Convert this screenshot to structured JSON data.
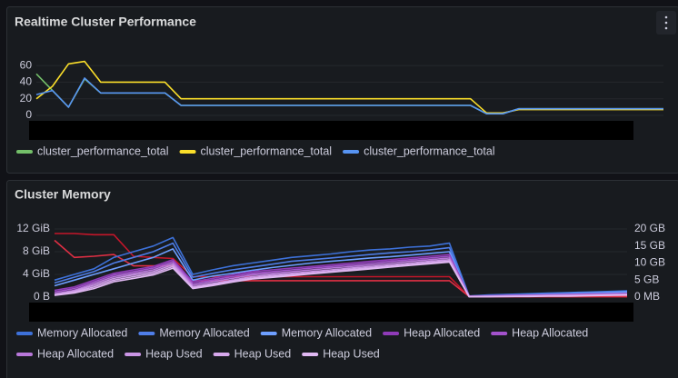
{
  "chart_data": [
    {
      "type": "line",
      "title": "Realtime Cluster Performance",
      "grid": true,
      "categories": [
        null,
        null,
        null,
        null,
        null,
        null,
        null,
        null,
        null,
        null,
        null,
        null,
        null,
        null,
        null,
        null,
        null,
        null,
        null,
        null,
        null,
        null,
        null,
        null,
        null,
        null,
        null,
        null,
        null,
        null,
        null,
        null,
        null,
        null,
        null,
        null,
        null,
        null,
        null,
        null
      ],
      "ylim": [
        0,
        70
      ],
      "yticks": [
        0,
        20,
        40,
        60
      ],
      "series": [
        {
          "name": "cluster_performance_total",
          "color": "#73bf69",
          "values": [
            50,
            30,
            10,
            44,
            27,
            27,
            27,
            27,
            27,
            12,
            12,
            12,
            12,
            12,
            12,
            12,
            12,
            12,
            12,
            12,
            12,
            12,
            12,
            12,
            12,
            12,
            12,
            12,
            2,
            2,
            8,
            8,
            8,
            8,
            8,
            8,
            8,
            8,
            8,
            8
          ]
        },
        {
          "name": "cluster_performance_total",
          "color": "#fade2a",
          "values": [
            20,
            35,
            62,
            65,
            40,
            40,
            40,
            40,
            40,
            20,
            20,
            20,
            20,
            20,
            20,
            20,
            20,
            20,
            20,
            20,
            20,
            20,
            20,
            20,
            20,
            20,
            20,
            20,
            3,
            3,
            7,
            7,
            7,
            7,
            7,
            7,
            7,
            7,
            7,
            7
          ]
        },
        {
          "name": "cluster_performance_total",
          "color": "#5794f2",
          "values": [
            25,
            30,
            10,
            45,
            27,
            27,
            27,
            27,
            27,
            12,
            12,
            12,
            12,
            12,
            12,
            12,
            12,
            12,
            12,
            12,
            12,
            12,
            12,
            12,
            12,
            12,
            12,
            12,
            2,
            2,
            8,
            8,
            8,
            8,
            8,
            8,
            8,
            8,
            8,
            8
          ]
        }
      ]
    },
    {
      "type": "line",
      "title": "Cluster Memory",
      "grid": true,
      "categories": [
        null,
        null,
        null,
        null,
        null,
        null,
        null,
        null,
        null,
        null,
        null,
        null,
        null,
        null,
        null,
        null,
        null,
        null,
        null,
        null,
        null,
        null,
        null,
        null,
        null,
        null,
        null,
        null,
        null,
        null
      ],
      "ylim": [
        0,
        12
      ],
      "yticks": [
        {
          "value": 0,
          "label": "0 B"
        },
        {
          "value": 4,
          "label": "4 GiB"
        },
        {
          "value": 8,
          "label": "8 GiB"
        },
        {
          "value": 12,
          "label": "12 GiB"
        }
      ],
      "y2lim": [
        0,
        20
      ],
      "y2ticks": [
        {
          "value": 0,
          "label": "0 MB"
        },
        {
          "value": 5,
          "label": "5 GB"
        },
        {
          "value": 10,
          "label": "10 GB"
        },
        {
          "value": 15,
          "label": "15 GB"
        },
        {
          "value": 20,
          "label": "20 GB"
        }
      ],
      "series": [
        {
          "color": "#c4162a",
          "values": [
            11.2,
            11.2,
            11,
            11,
            7.2,
            7,
            6.8,
            3.6,
            3.6,
            3.6,
            3.6,
            3.6,
            3.6,
            3.6,
            3.6,
            3.6,
            3.6,
            3.6,
            3.6,
            3.6,
            3.6,
            0.1,
            0.1,
            0.1,
            0.1,
            0.1,
            0.1,
            0.1,
            0.1,
            0.1
          ]
        },
        {
          "color": "#e02f44",
          "values": [
            10,
            7,
            7.2,
            7.5,
            5.5,
            5.5,
            5.5,
            2.9,
            2.9,
            2.9,
            2.9,
            2.9,
            2.9,
            2.9,
            2.9,
            2.9,
            2.9,
            2.9,
            2.9,
            2.9,
            2.9,
            0.1,
            0.1,
            0.1,
            0.1,
            0.1,
            0.1,
            0.1,
            0.1,
            0.1
          ]
        },
        {
          "name": "Memory Allocated",
          "color": "#3d71d9",
          "values": [
            3,
            4,
            5,
            7,
            8,
            9,
            10.5,
            4,
            4.8,
            5.5,
            6,
            6.5,
            7,
            7.3,
            7.6,
            8,
            8.3,
            8.5,
            8.8,
            9,
            9.5,
            0.2,
            0.4,
            0.5,
            0.6,
            0.7,
            0.8,
            0.9,
            1,
            1.1
          ]
        },
        {
          "name": "Memory Allocated",
          "color": "#4f7ee8",
          "values": [
            2.5,
            3.5,
            4.5,
            6,
            7,
            8,
            9.5,
            3.5,
            4.2,
            4.8,
            5.3,
            5.8,
            6.3,
            6.6,
            6.9,
            7.2,
            7.5,
            7.8,
            8,
            8.3,
            8.7,
            0.2,
            0.3,
            0.4,
            0.5,
            0.6,
            0.7,
            0.8,
            0.9,
            1
          ]
        },
        {
          "name": "Memory Allocated",
          "color": "#6e9fff",
          "values": [
            2,
            3,
            4,
            5,
            6,
            7,
            8.5,
            3,
            3.7,
            4.2,
            4.7,
            5.2,
            5.6,
            6,
            6.3,
            6.6,
            6.9,
            7.1,
            7.4,
            7.7,
            8,
            0.1,
            0.2,
            0.3,
            0.4,
            0.5,
            0.6,
            0.7,
            0.8,
            0.9
          ]
        },
        {
          "name": "Heap Allocated",
          "color": "#8f3bb8",
          "axis": "y2",
          "values": [
            2,
            3,
            5,
            7,
            8,
            9,
            11,
            4.5,
            5.5,
            6.5,
            7.5,
            8,
            8.5,
            9,
            9.5,
            10,
            10.5,
            11,
            11.5,
            12,
            12.5,
            0.3,
            0.4,
            0.5,
            0.6,
            0.7,
            0.8,
            0.9,
            1,
            1.1
          ]
        },
        {
          "name": "Heap Allocated",
          "color": "#a352cc",
          "axis": "y2",
          "values": [
            1.5,
            2.5,
            4.5,
            6.5,
            7.5,
            8.5,
            10.5,
            4,
            5,
            6,
            7,
            7.5,
            8,
            8.5,
            9,
            9.5,
            10,
            10.5,
            11,
            11.5,
            12,
            0.3,
            0.3,
            0.4,
            0.5,
            0.6,
            0.7,
            0.8,
            0.9,
            1
          ]
        },
        {
          "name": "Heap Allocated",
          "color": "#b877d9",
          "axis": "y2",
          "values": [
            1,
            2,
            4,
            6,
            7,
            8,
            10,
            3.5,
            4.5,
            5.5,
            6.5,
            7,
            7.5,
            8,
            8.5,
            9,
            9.5,
            10,
            10.5,
            11,
            11.5,
            0.2,
            0.3,
            0.4,
            0.4,
            0.5,
            0.6,
            0.7,
            0.8,
            0.9
          ]
        },
        {
          "name": "Heap Used",
          "color": "#ca95e5",
          "axis": "y2",
          "values": [
            0.8,
            1.8,
            3.5,
            5.5,
            6.5,
            7.5,
            9.5,
            3,
            4,
            5,
            6,
            6.5,
            7,
            7.5,
            8,
            8.5,
            9,
            9.5,
            10,
            10.5,
            11,
            0.2,
            0.2,
            0.3,
            0.4,
            0.4,
            0.5,
            0.6,
            0.7,
            0.8
          ]
        },
        {
          "name": "Heap Used",
          "color": "#d6a8ec",
          "axis": "y2",
          "values": [
            0.6,
            1.5,
            3,
            5,
            6,
            7,
            9,
            2.8,
            3.7,
            4.7,
            5.6,
            6.1,
            6.6,
            7.1,
            7.6,
            8.1,
            8.6,
            9.1,
            9.6,
            10.1,
            10.6,
            0.1,
            0.2,
            0.2,
            0.3,
            0.4,
            0.4,
            0.5,
            0.6,
            0.7
          ]
        },
        {
          "name": "Heap Used",
          "color": "#e0b8f2",
          "axis": "y2",
          "values": [
            0.5,
            1.2,
            2.5,
            4.5,
            5.5,
            6.5,
            8.5,
            2.5,
            3.4,
            4.4,
            5.3,
            5.8,
            6.3,
            6.8,
            7.3,
            7.8,
            8.3,
            8.8,
            9.3,
            9.8,
            10.3,
            0.1,
            0.1,
            0.2,
            0.2,
            0.3,
            0.3,
            0.4,
            0.5,
            0.6
          ]
        }
      ]
    }
  ]
}
